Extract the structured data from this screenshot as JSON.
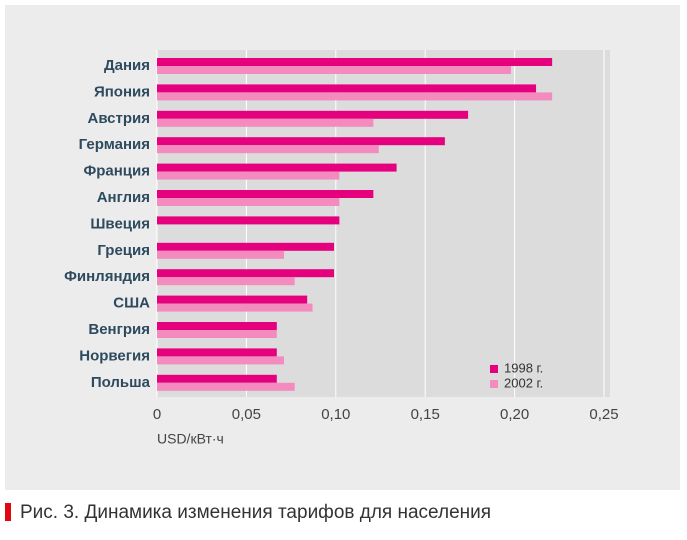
{
  "chart_data": {
    "type": "hbar",
    "categories": [
      "Дания",
      "Япония",
      "Австрия",
      "Германия",
      "Франция",
      "Англия",
      "Швеция",
      "Греция",
      "Финляндия",
      "США",
      "Венгрия",
      "Норвегия",
      "Польша"
    ],
    "series": [
      {
        "name": "1998 г.",
        "color": "#e5007e",
        "values": [
          0.221,
          0.212,
          0.174,
          0.161,
          0.134,
          0.121,
          0.102,
          0.099,
          0.099,
          0.084,
          0.067,
          0.067,
          0.067
        ]
      },
      {
        "name": "2002 г.",
        "color": "#f38bbf",
        "values": [
          0.198,
          0.221,
          0.121,
          0.124,
          0.102,
          0.102,
          null,
          0.071,
          0.077,
          0.087,
          0.067,
          0.071,
          0.077
        ]
      }
    ],
    "xlim": [
      0,
      0.25
    ],
    "xticks": [
      0,
      {
        "value": 0.05,
        "label": "0,05"
      },
      {
        "value": 0.1,
        "label": "0,10"
      },
      {
        "value": 0.15,
        "label": "0,15"
      },
      {
        "value": 0.2,
        "label": "0,20"
      },
      {
        "value": 0.25,
        "label": "0,25"
      }
    ],
    "xlabel": "USD/кВт·ч",
    "grid": true,
    "legend": "lower right",
    "caption": "Рис. 3. Динамика изменения тарифов для населения"
  }
}
